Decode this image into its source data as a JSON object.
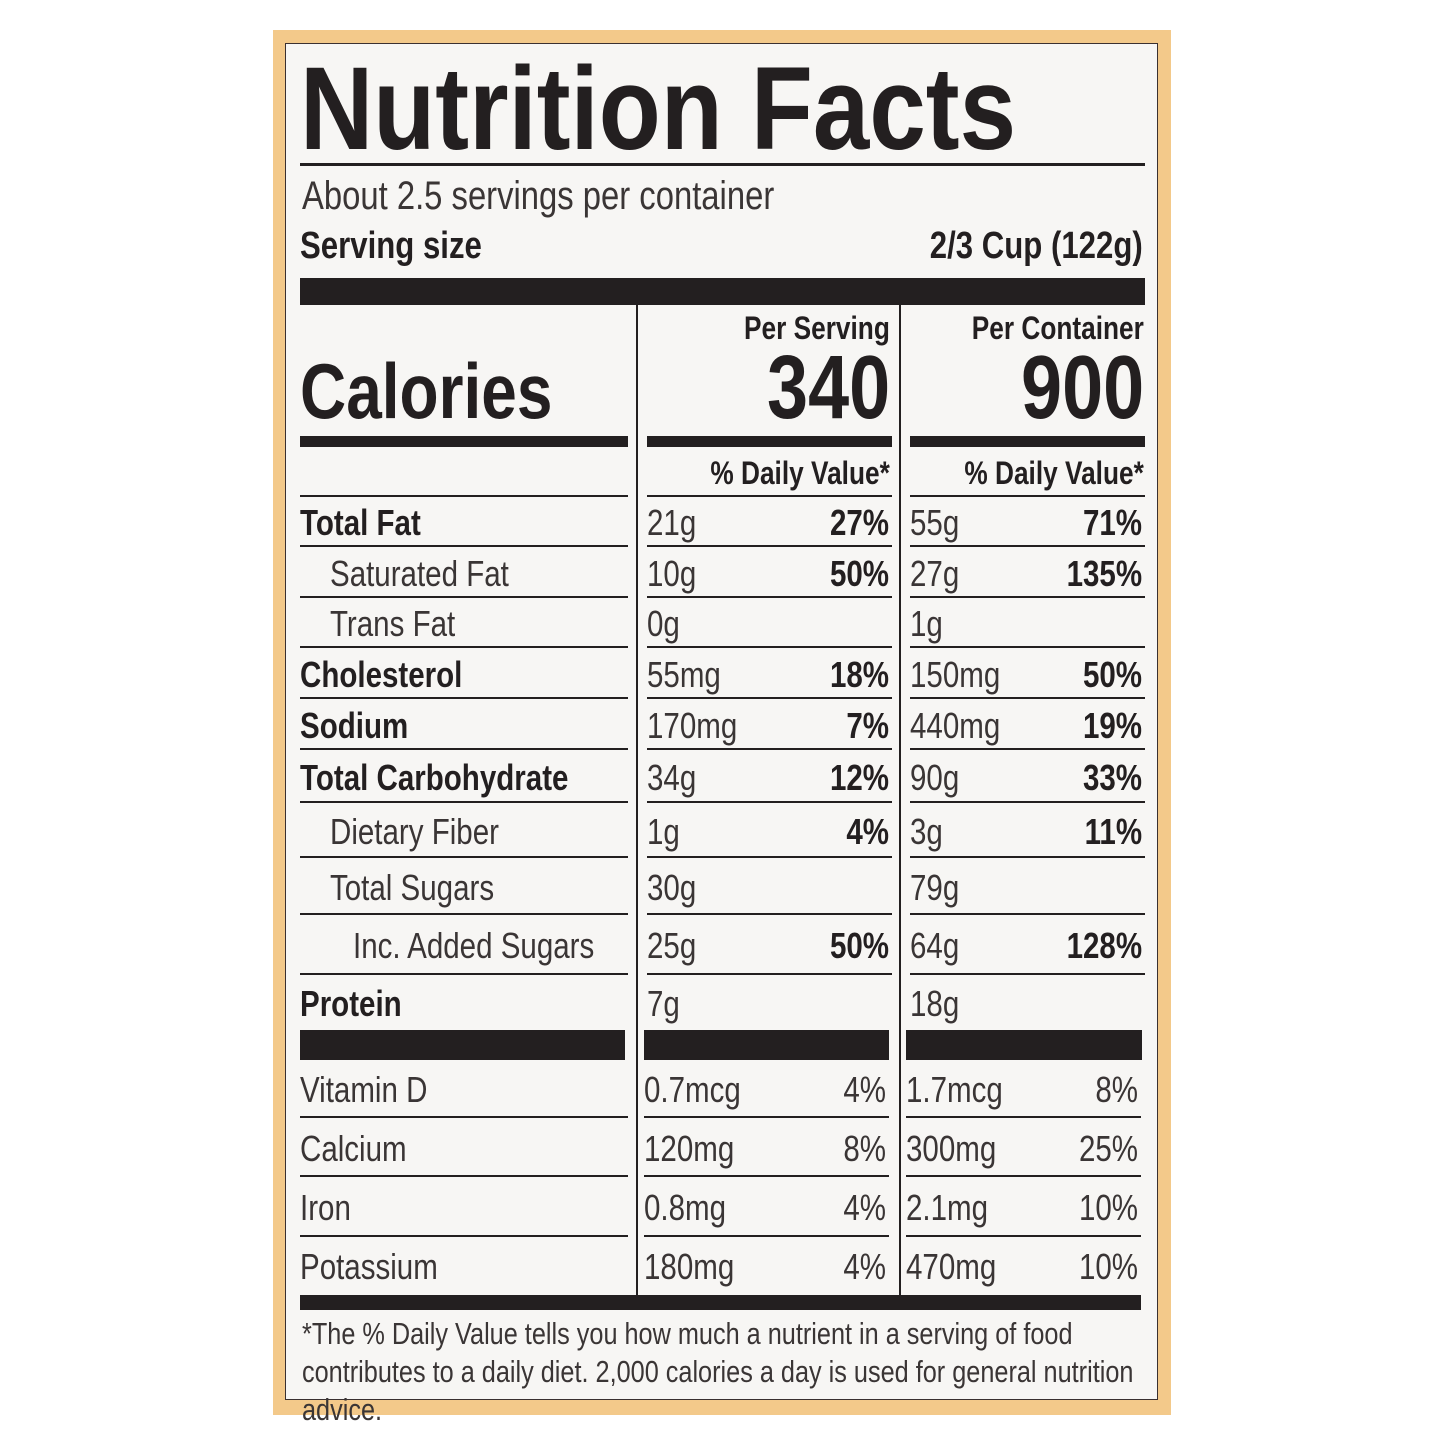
{
  "title": "Nutrition Facts",
  "servings": "About 2.5 servings per container",
  "serving_size_label": "Serving size",
  "serving_size": "2/3 Cup (122g)",
  "calories_label": "Calories",
  "per_serving": {
    "header": "Per Serving",
    "calories": "340",
    "dv_header": "% Daily Value*"
  },
  "per_container": {
    "header": "Per Container",
    "calories": "900",
    "dv_header": "% Daily Value*"
  },
  "nutrients": [
    {
      "name": "Total Fat",
      "bold": true,
      "indent": 0,
      "s_amt": "21g",
      "s_dv": "27%",
      "c_amt": "55g",
      "c_dv": "71%"
    },
    {
      "name": "Saturated Fat",
      "bold": false,
      "indent": 1,
      "s_amt": "10g",
      "s_dv": "50%",
      "c_amt": "27g",
      "c_dv": "135%"
    },
    {
      "name": "Trans Fat",
      "bold": false,
      "indent": 1,
      "s_amt": "0g",
      "s_dv": "",
      "c_amt": "1g",
      "c_dv": ""
    },
    {
      "name": "Cholesterol",
      "bold": true,
      "indent": 0,
      "s_amt": "55mg",
      "s_dv": "18%",
      "c_amt": "150mg",
      "c_dv": "50%"
    },
    {
      "name": "Sodium",
      "bold": true,
      "indent": 0,
      "s_amt": "170mg",
      "s_dv": "7%",
      "c_amt": "440mg",
      "c_dv": "19%"
    },
    {
      "name": "Total Carbohydrate",
      "bold": true,
      "indent": 0,
      "s_amt": "34g",
      "s_dv": "12%",
      "c_amt": "90g",
      "c_dv": "33%"
    },
    {
      "name": "Dietary Fiber",
      "bold": false,
      "indent": 1,
      "s_amt": "1g",
      "s_dv": "4%",
      "c_amt": "3g",
      "c_dv": "11%"
    },
    {
      "name": "Total Sugars",
      "bold": false,
      "indent": 1,
      "s_amt": "30g",
      "s_dv": "",
      "c_amt": "79g",
      "c_dv": ""
    },
    {
      "name": "Inc. Added Sugars",
      "bold": false,
      "indent": 2,
      "s_amt": "25g",
      "s_dv": "50%",
      "c_amt": "64g",
      "c_dv": "128%"
    },
    {
      "name": "Protein",
      "bold": true,
      "indent": 0,
      "s_amt": "7g",
      "s_dv": "",
      "c_amt": "18g",
      "c_dv": ""
    }
  ],
  "vitamins": [
    {
      "name": "Vitamin D",
      "s_amt": "0.7mcg",
      "s_dv": "4%",
      "c_amt": "1.7mcg",
      "c_dv": "8%"
    },
    {
      "name": "Calcium",
      "s_amt": "120mg",
      "s_dv": "8%",
      "c_amt": "300mg",
      "c_dv": "25%"
    },
    {
      "name": "Iron",
      "s_amt": "0.8mg",
      "s_dv": "4%",
      "c_amt": "2.1mg",
      "c_dv": "10%"
    },
    {
      "name": "Potassium",
      "s_amt": "180mg",
      "s_dv": "4%",
      "c_amt": "470mg",
      "c_dv": "10%"
    }
  ],
  "footnote": "*The % Daily Value tells you how much a nutrient in a serving of food contributes to a daily diet. 2,000 calories a day is used for general nutrition advice.",
  "colors": {
    "border": "#f3c98a",
    "ink": "#231f20",
    "panel": "#f7f6f4"
  }
}
